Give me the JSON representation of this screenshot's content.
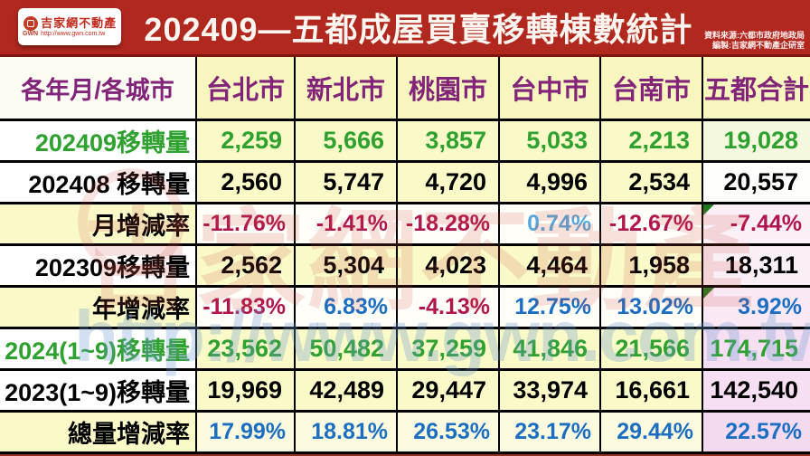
{
  "header": {
    "title": "202409—五都成屋買賣移轉棟數統計",
    "logo": {
      "brand": "吉家網不動產",
      "gwn": "GWN",
      "url": "http://www.gwn.com.tw"
    },
    "source_line1": "資料來源:六都市政府地政局",
    "source_line2": "編製:吉家網不動產企研室"
  },
  "watermark": {
    "brand": "吉家網不動產",
    "url": "http://www.gwn.com.tw"
  },
  "palette": {
    "green": "#2FA12F",
    "black": "#000000",
    "red": "#B0154E",
    "blue": "#1B6EC2",
    "lightblue": "#58A7DE",
    "purple": "#822479",
    "banner_red": "#B0281E",
    "cell_yellow": "#FAF9C8",
    "cell_white": "#FFFEFB"
  },
  "chart_data": {
    "type": "table",
    "title": "202409—五都成屋買賣移轉棟數統計",
    "columns": [
      "各年月/各城市",
      "台北市",
      "新北市",
      "桃園市",
      "台中市",
      "台南市",
      "五都合計"
    ],
    "rows": [
      {
        "label": "202409移轉量",
        "label_color": "green",
        "label_bg": "#FFFFFF",
        "values": [
          "2,259",
          "5,666",
          "3,857",
          "5,033",
          "2,213",
          "19,028"
        ],
        "value_colors": [
          "green",
          "green",
          "green",
          "green",
          "green",
          "green"
        ],
        "data_bg": "#FAF9C8",
        "total_bg": "#F4F8DF",
        "marker_cells": []
      },
      {
        "label": "202408 移轉量",
        "label_color": "black",
        "label_bg": "#FFFFFF",
        "values": [
          "2,560",
          "5,747",
          "4,720",
          "4,996",
          "2,534",
          "20,557"
        ],
        "value_colors": [
          "black",
          "black",
          "black",
          "black",
          "black",
          "black"
        ],
        "data_bg": "#FAF9C8",
        "total_bg": "#FEFEFC",
        "marker_cells": []
      },
      {
        "label": "月增減率",
        "label_color": "black",
        "label_bg": "#FAF9C8",
        "values": [
          "-11.76%",
          "-1.41%",
          "-18.28%",
          "0.74%",
          "-12.67%",
          "-7.44%"
        ],
        "value_colors": [
          "red",
          "red",
          "red",
          "lightblue",
          "red",
          "red"
        ],
        "data_bg": "#FFFEF8",
        "total_bg": "#FBF0F8",
        "marker_cells": [
          5
        ]
      },
      {
        "label": "202309移轉量",
        "label_color": "black",
        "label_bg": "#FFFFFF",
        "values": [
          "2,562",
          "5,304",
          "4,023",
          "4,464",
          "1,958",
          "18,311"
        ],
        "value_colors": [
          "black",
          "black",
          "black",
          "black",
          "black",
          "black"
        ],
        "data_bg": "#FAF9C8",
        "total_bg": "#FBEFF7",
        "marker_cells": []
      },
      {
        "label": "年增減率",
        "label_color": "black",
        "label_bg": "#FAF9C8",
        "values": [
          "-11.83%",
          "6.83%",
          "-4.13%",
          "12.75%",
          "13.02%",
          "3.92%"
        ],
        "value_colors": [
          "red",
          "blue",
          "red",
          "blue",
          "blue",
          "blue"
        ],
        "data_bg": "#FFFEF8",
        "total_bg": "#FAE9F5",
        "marker_cells": [
          5
        ]
      },
      {
        "label": "2024(1~9)移轉量",
        "label_color": "green",
        "label_bg": "#FFFFFF",
        "values": [
          "23,562",
          "50,482",
          "37,259",
          "41,846",
          "21,566",
          "174,715"
        ],
        "value_colors": [
          "green",
          "green",
          "green",
          "green",
          "green",
          "green"
        ],
        "data_bg": "#FAF9C8",
        "total_bg": "#F6DFF2",
        "marker_cells": []
      },
      {
        "label": "2023(1~9)移轉量",
        "label_color": "black",
        "label_bg": "#FFFFFF",
        "values": [
          "19,969",
          "42,489",
          "29,447",
          "33,974",
          "16,661",
          "142,540"
        ],
        "value_colors": [
          "black",
          "black",
          "black",
          "black",
          "black",
          "black"
        ],
        "data_bg": "#FAF9C8",
        "total_bg": "#F6DFF2",
        "marker_cells": []
      },
      {
        "label": "總量增減率",
        "label_color": "black",
        "label_bg": "#FAF9C8",
        "values": [
          "17.99%",
          "18.81%",
          "26.53%",
          "23.17%",
          "29.44%",
          "22.57%"
        ],
        "value_colors": [
          "blue",
          "blue",
          "blue",
          "blue",
          "blue",
          "blue"
        ],
        "data_bg": "#FCFBE0",
        "total_bg": "#F4DAEF",
        "marker_cells": []
      }
    ]
  }
}
